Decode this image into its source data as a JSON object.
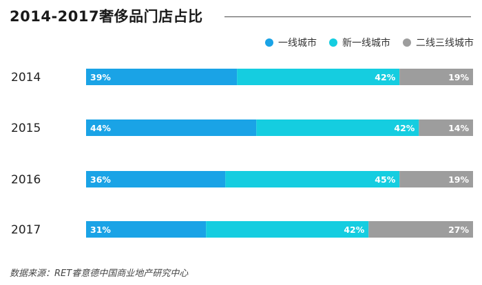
{
  "title": "2014-2017奢侈品门店占比",
  "source": "数据来源：RET睿意德中国商业地产研究中心",
  "chart_data": {
    "type": "bar",
    "orientation": "horizontal",
    "stacked": true,
    "categories": [
      "2014",
      "2015",
      "2016",
      "2017"
    ],
    "series": [
      {
        "name": "一线城市",
        "color": "#1aa3e6",
        "values": [
          39,
          44,
          36,
          31
        ],
        "labels": [
          "39%",
          "44%",
          "36%",
          "31%"
        ]
      },
      {
        "name": "新一线城市",
        "color": "#15cde0",
        "values": [
          42,
          42,
          45,
          42
        ],
        "labels": [
          "42%",
          "42%",
          "45%",
          "42%"
        ]
      },
      {
        "name": "二线三线城市",
        "color": "#9d9d9d",
        "values": [
          19,
          14,
          19,
          27
        ],
        "labels": [
          "19%",
          "14%",
          "19%",
          "27%"
        ]
      }
    ],
    "legend_position": "top-right"
  }
}
